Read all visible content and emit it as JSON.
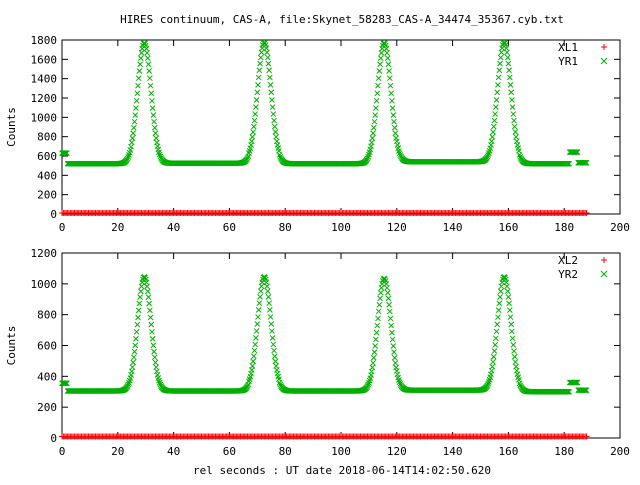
{
  "title": "HIRES continuum, CAS-A, file:Skynet_58283_CAS-A_34474_35367.cyb.txt",
  "xlabel": "rel seconds : UT date 2018-06-14T14:02:50.620",
  "colors": {
    "xl": "#ff0000",
    "yr": "#00b000",
    "axis": "#000000"
  },
  "chart_data": [
    {
      "type": "scatter",
      "title": "HIRES continuum, CAS-A, file:Skynet_58283_CAS-A_34474_35367.cyb.txt",
      "xlabel": "",
      "ylabel": "Counts",
      "xlim": [
        0,
        200
      ],
      "ylim": [
        0,
        1800
      ],
      "xticks": [
        0,
        20,
        40,
        60,
        80,
        100,
        120,
        140,
        160,
        180,
        200
      ],
      "yticks": [
        0,
        200,
        400,
        600,
        800,
        1000,
        1200,
        1400,
        1600,
        1800
      ],
      "grid": false,
      "legend_placement": "top-right",
      "baseline_segments": [
        [
          0,
          2,
          630
        ],
        [
          2,
          25,
          520
        ],
        [
          25,
          35,
          525
        ],
        [
          35,
          67,
          525
        ],
        [
          67,
          78,
          540
        ],
        [
          78,
          110,
          520
        ],
        [
          110,
          120,
          525
        ],
        [
          120,
          152,
          540
        ],
        [
          152,
          164,
          540
        ],
        [
          164,
          182,
          520
        ],
        [
          182,
          185,
          640
        ],
        [
          185,
          188,
          530
        ]
      ],
      "peaks": [
        {
          "x": 29.5,
          "height": 1770
        },
        {
          "x": 72.5,
          "height": 1775
        },
        {
          "x": 115.5,
          "height": 1770
        },
        {
          "x": 158.5,
          "height": 1775
        }
      ],
      "peak_width": 2.4,
      "series": [
        {
          "name": "XL1",
          "marker": "+",
          "color": "#ff0000",
          "x_range": [
            0,
            188
          ],
          "constant_value": 10
        },
        {
          "name": "YR1",
          "marker": "x",
          "color": "#00b000",
          "x_range": [
            0,
            188
          ]
        }
      ]
    },
    {
      "type": "scatter",
      "title": "",
      "xlabel": "rel seconds : UT date 2018-06-14T14:02:50.620",
      "ylabel": "Counts",
      "xlim": [
        0,
        200
      ],
      "ylim": [
        0,
        1200
      ],
      "xticks": [
        0,
        20,
        40,
        60,
        80,
        100,
        120,
        140,
        160,
        180,
        200
      ],
      "yticks": [
        0,
        200,
        400,
        600,
        800,
        1000,
        1200
      ],
      "grid": false,
      "legend_placement": "top-right",
      "baseline_segments": [
        [
          0,
          2,
          355
        ],
        [
          2,
          25,
          305
        ],
        [
          25,
          35,
          305
        ],
        [
          35,
          67,
          305
        ],
        [
          67,
          78,
          315
        ],
        [
          78,
          110,
          305
        ],
        [
          110,
          120,
          305
        ],
        [
          120,
          152,
          310
        ],
        [
          152,
          164,
          310
        ],
        [
          164,
          182,
          300
        ],
        [
          182,
          185,
          360
        ],
        [
          185,
          188,
          310
        ]
      ],
      "peaks": [
        {
          "x": 29.5,
          "height": 1045
        },
        {
          "x": 72.5,
          "height": 1045
        },
        {
          "x": 115.5,
          "height": 1035
        },
        {
          "x": 158.5,
          "height": 1045
        }
      ],
      "peak_width": 2.4,
      "series": [
        {
          "name": "XL2",
          "marker": "+",
          "color": "#ff0000",
          "x_range": [
            0,
            188
          ],
          "constant_value": 10
        },
        {
          "name": "YR2",
          "marker": "x",
          "color": "#00b000",
          "x_range": [
            0,
            188
          ]
        }
      ]
    }
  ]
}
